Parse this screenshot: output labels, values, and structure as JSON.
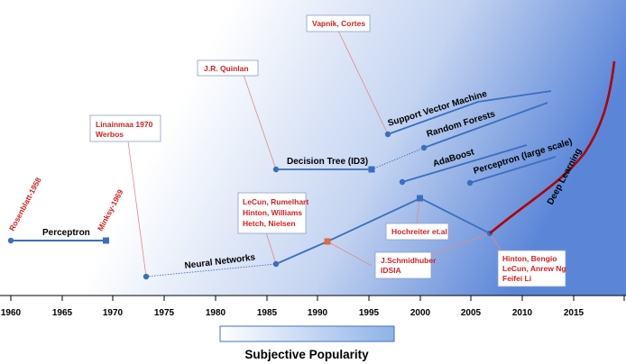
{
  "colors": {
    "accent_blue": "#4472c4",
    "blue_line": "#3a6fbe",
    "red_text": "#d41f1f",
    "deep_red": "#b00000",
    "bg_gradient_start": "#ffffff",
    "bg_gradient_end": "#5b86d8"
  },
  "axis": {
    "ticks": [
      "1960",
      "1965",
      "1970",
      "1975",
      "1980",
      "1985",
      "1990",
      "1995",
      "2000",
      "2005",
      "2010",
      "2015"
    ]
  },
  "legend": {
    "title": "Subjective Popularity"
  },
  "series_labels": {
    "perceptron": "Perceptron",
    "neural_networks": "Neural Networks",
    "decision_tree": "Decision Tree (ID3)",
    "svm": "Support Vector Machine",
    "random_forests": "Random Forests",
    "adaboost": "AdaBoost",
    "perceptron_large": "Perceptron (large scale)",
    "deep_learning": "Deep Learning"
  },
  "people": {
    "rosenblatt": "Rosenblatt-1958",
    "minsky": "Minksy-1969",
    "linainmaa_1": "Linainmaa 1970",
    "linainmaa_2": "Werbos",
    "quinlan": "J.R. Quinlan",
    "vapnik": "Vapnik, Cortes",
    "lecun_1": "LeCun, Rumelhart",
    "lecun_2": "Hinton, Williams",
    "lecun_3": "Hetch, Nielsen",
    "hochreiter": "Hochreiter et.al",
    "schmid_1": "J.Schmidhuber",
    "schmid_2": "IDSIA",
    "hinton_1": "Hinton, Bengio",
    "hinton_2": "LeCun, Anrew Ng",
    "hinton_3": "Feifei Li"
  }
}
